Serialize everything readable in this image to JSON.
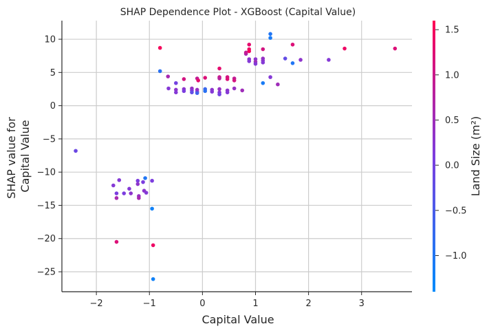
{
  "chart_data": {
    "type": "scatter",
    "title": "SHAP Dependence Plot - XGBoost (Capital Value)",
    "xlabel": "Capital Value",
    "ylabel_lines": [
      "SHAP value for",
      "Capital Value"
    ],
    "xlim": [
      -2.65,
      3.95
    ],
    "ylim": [
      -28,
      12.8
    ],
    "xticks": [
      -2,
      -1,
      0,
      1,
      2,
      3
    ],
    "xtick_labels": [
      "−2",
      "−1",
      "0",
      "1",
      "2",
      "3"
    ],
    "yticks": [
      10,
      5,
      0,
      -5,
      -10,
      -15,
      -20,
      -25
    ],
    "ytick_labels": [
      "10",
      "5",
      "0",
      "−5",
      "−10",
      "−15",
      "−20",
      "−25"
    ],
    "grid": true,
    "colorbar": {
      "label": "Land Size (m²)",
      "range": [
        -1.4,
        1.6
      ],
      "ticks": [
        1.5,
        1.0,
        0.5,
        0.0,
        -0.5,
        -1.0
      ],
      "tick_labels": [
        "1.5",
        "1.0",
        "0.5",
        "0.0",
        "−0.5",
        "−1.0"
      ],
      "low_color": "#008bfb",
      "high_color": "#ff0052"
    },
    "points": [
      {
        "x": -2.39,
        "y": -6.8,
        "c": -0.1
      },
      {
        "x": -1.68,
        "y": -12.0,
        "c": 0.2
      },
      {
        "x": -1.62,
        "y": -13.2,
        "c": 0.1
      },
      {
        "x": -1.62,
        "y": -13.9,
        "c": 0.6
      },
      {
        "x": -1.57,
        "y": -11.2,
        "c": 0.2
      },
      {
        "x": -1.48,
        "y": -13.2,
        "c": 0.1
      },
      {
        "x": -1.38,
        "y": -12.5,
        "c": 0.2
      },
      {
        "x": -1.35,
        "y": -13.2,
        "c": 0.3
      },
      {
        "x": -1.22,
        "y": -11.3,
        "c": 0.1
      },
      {
        "x": -1.22,
        "y": -11.8,
        "c": 0.3
      },
      {
        "x": -1.2,
        "y": -13.6,
        "c": 0.4
      },
      {
        "x": -1.2,
        "y": -13.9,
        "c": 0.6
      },
      {
        "x": -1.12,
        "y": -11.5,
        "c": 0.1
      },
      {
        "x": -1.1,
        "y": -12.8,
        "c": 0.3
      },
      {
        "x": -1.08,
        "y": -10.9,
        "c": -1.0
      },
      {
        "x": -1.06,
        "y": -13.1,
        "c": 0.2
      },
      {
        "x": -0.95,
        "y": -11.3,
        "c": 0.1
      },
      {
        "x": -0.95,
        "y": -15.5,
        "c": -1.2
      },
      {
        "x": -0.93,
        "y": -21.0,
        "c": 1.4
      },
      {
        "x": -0.93,
        "y": -26.1,
        "c": -1.2
      },
      {
        "x": -1.62,
        "y": -20.5,
        "c": 1.2
      },
      {
        "x": -0.8,
        "y": 8.7,
        "c": 1.5
      },
      {
        "x": -0.8,
        "y": 5.2,
        "c": -0.9
      },
      {
        "x": -0.65,
        "y": 4.4,
        "c": 0.6
      },
      {
        "x": -0.64,
        "y": 2.6,
        "c": 0.2
      },
      {
        "x": -0.5,
        "y": 3.4,
        "c": 0.0
      },
      {
        "x": -0.5,
        "y": 2.4,
        "c": 0.3
      },
      {
        "x": -0.5,
        "y": 2.0,
        "c": 0.2
      },
      {
        "x": -0.35,
        "y": 4.0,
        "c": 1.1
      },
      {
        "x": -0.35,
        "y": 2.5,
        "c": 0.3
      },
      {
        "x": -0.35,
        "y": 2.2,
        "c": 0.1
      },
      {
        "x": -0.2,
        "y": 2.6,
        "c": 0.4
      },
      {
        "x": -0.2,
        "y": 2.3,
        "c": 0.2
      },
      {
        "x": -0.2,
        "y": 2.0,
        "c": -0.2
      },
      {
        "x": -0.1,
        "y": 4.1,
        "c": 0.9
      },
      {
        "x": -0.1,
        "y": 2.4,
        "c": 0.4
      },
      {
        "x": -0.1,
        "y": 2.1,
        "c": 0.3
      },
      {
        "x": -0.1,
        "y": 1.9,
        "c": -0.6
      },
      {
        "x": -0.08,
        "y": 3.8,
        "c": 1.3
      },
      {
        "x": 0.05,
        "y": 4.2,
        "c": 1.2
      },
      {
        "x": 0.05,
        "y": 2.5,
        "c": -0.7
      },
      {
        "x": 0.05,
        "y": 2.2,
        "c": -0.9
      },
      {
        "x": 0.18,
        "y": 2.4,
        "c": 0.3
      },
      {
        "x": 0.18,
        "y": 2.1,
        "c": 0.2
      },
      {
        "x": 0.32,
        "y": 5.6,
        "c": 1.3
      },
      {
        "x": 0.32,
        "y": 4.3,
        "c": 1.0
      },
      {
        "x": 0.32,
        "y": 4.1,
        "c": 0.8
      },
      {
        "x": 0.32,
        "y": 2.5,
        "c": 0.4
      },
      {
        "x": 0.32,
        "y": 2.0,
        "c": 0.2
      },
      {
        "x": 0.32,
        "y": 1.7,
        "c": 0.0
      },
      {
        "x": 0.47,
        "y": 4.3,
        "c": 1.1
      },
      {
        "x": 0.47,
        "y": 4.0,
        "c": 1.2
      },
      {
        "x": 0.47,
        "y": 2.3,
        "c": 0.3
      },
      {
        "x": 0.47,
        "y": 2.0,
        "c": 0.2
      },
      {
        "x": 0.6,
        "y": 4.1,
        "c": 0.9
      },
      {
        "x": 0.6,
        "y": 3.8,
        "c": 1.1
      },
      {
        "x": 0.6,
        "y": 2.6,
        "c": 0.4
      },
      {
        "x": 0.75,
        "y": 2.3,
        "c": 0.5
      },
      {
        "x": 0.82,
        "y": 7.8,
        "c": 0.6
      },
      {
        "x": 0.82,
        "y": 8.0,
        "c": 0.9
      },
      {
        "x": 0.88,
        "y": 9.2,
        "c": 1.3
      },
      {
        "x": 0.88,
        "y": 8.5,
        "c": 1.4
      },
      {
        "x": 0.88,
        "y": 8.2,
        "c": 1.5
      },
      {
        "x": 0.88,
        "y": 7.0,
        "c": 0.3
      },
      {
        "x": 0.88,
        "y": 6.7,
        "c": 0.2
      },
      {
        "x": 1.0,
        "y": 7.0,
        "c": 0.3
      },
      {
        "x": 1.0,
        "y": 6.6,
        "c": 0.5
      },
      {
        "x": 1.0,
        "y": 6.3,
        "c": 0.2
      },
      {
        "x": 1.14,
        "y": 7.1,
        "c": 0.4
      },
      {
        "x": 1.14,
        "y": 6.8,
        "c": 0.3
      },
      {
        "x": 1.14,
        "y": 6.5,
        "c": 0.2
      },
      {
        "x": 1.14,
        "y": 8.5,
        "c": 1.1
      },
      {
        "x": 1.14,
        "y": 3.4,
        "c": -1.1
      },
      {
        "x": 1.28,
        "y": 10.8,
        "c": -1.0
      },
      {
        "x": 1.28,
        "y": 10.2,
        "c": -1.1
      },
      {
        "x": 1.28,
        "y": 4.3,
        "c": 0.2
      },
      {
        "x": 1.42,
        "y": 3.2,
        "c": 0.5
      },
      {
        "x": 1.56,
        "y": 7.1,
        "c": -0.2
      },
      {
        "x": 1.7,
        "y": 9.2,
        "c": 1.2
      },
      {
        "x": 1.7,
        "y": 6.4,
        "c": -1.0
      },
      {
        "x": 1.85,
        "y": 6.9,
        "c": 0.3
      },
      {
        "x": 2.38,
        "y": 6.9,
        "c": 0.2
      },
      {
        "x": 2.68,
        "y": 8.6,
        "c": 1.4
      },
      {
        "x": 3.63,
        "y": 8.6,
        "c": 1.2
      }
    ]
  }
}
